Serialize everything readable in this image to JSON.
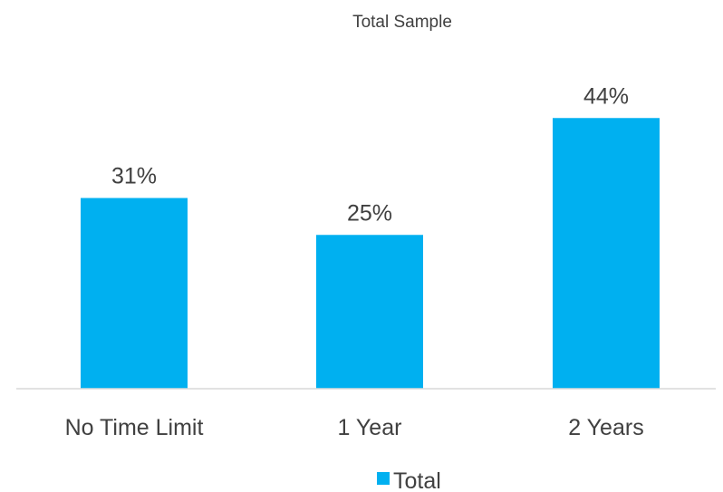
{
  "chart_data": {
    "type": "bar",
    "title": "Total Sample",
    "categories": [
      "No Time Limit",
      "1 Year",
      "2 Years"
    ],
    "series": [
      {
        "name": "Total",
        "values": [
          31,
          25,
          44
        ],
        "labels": [
          "31%",
          "25%",
          "44%"
        ],
        "color": "#00b0f0"
      }
    ],
    "ylim": [
      0,
      57
    ],
    "grid": false,
    "legend_position": "bottom"
  },
  "colors": {
    "bar": "#00b0f0",
    "axis": "#d9d9d9",
    "text": "#404040"
  }
}
